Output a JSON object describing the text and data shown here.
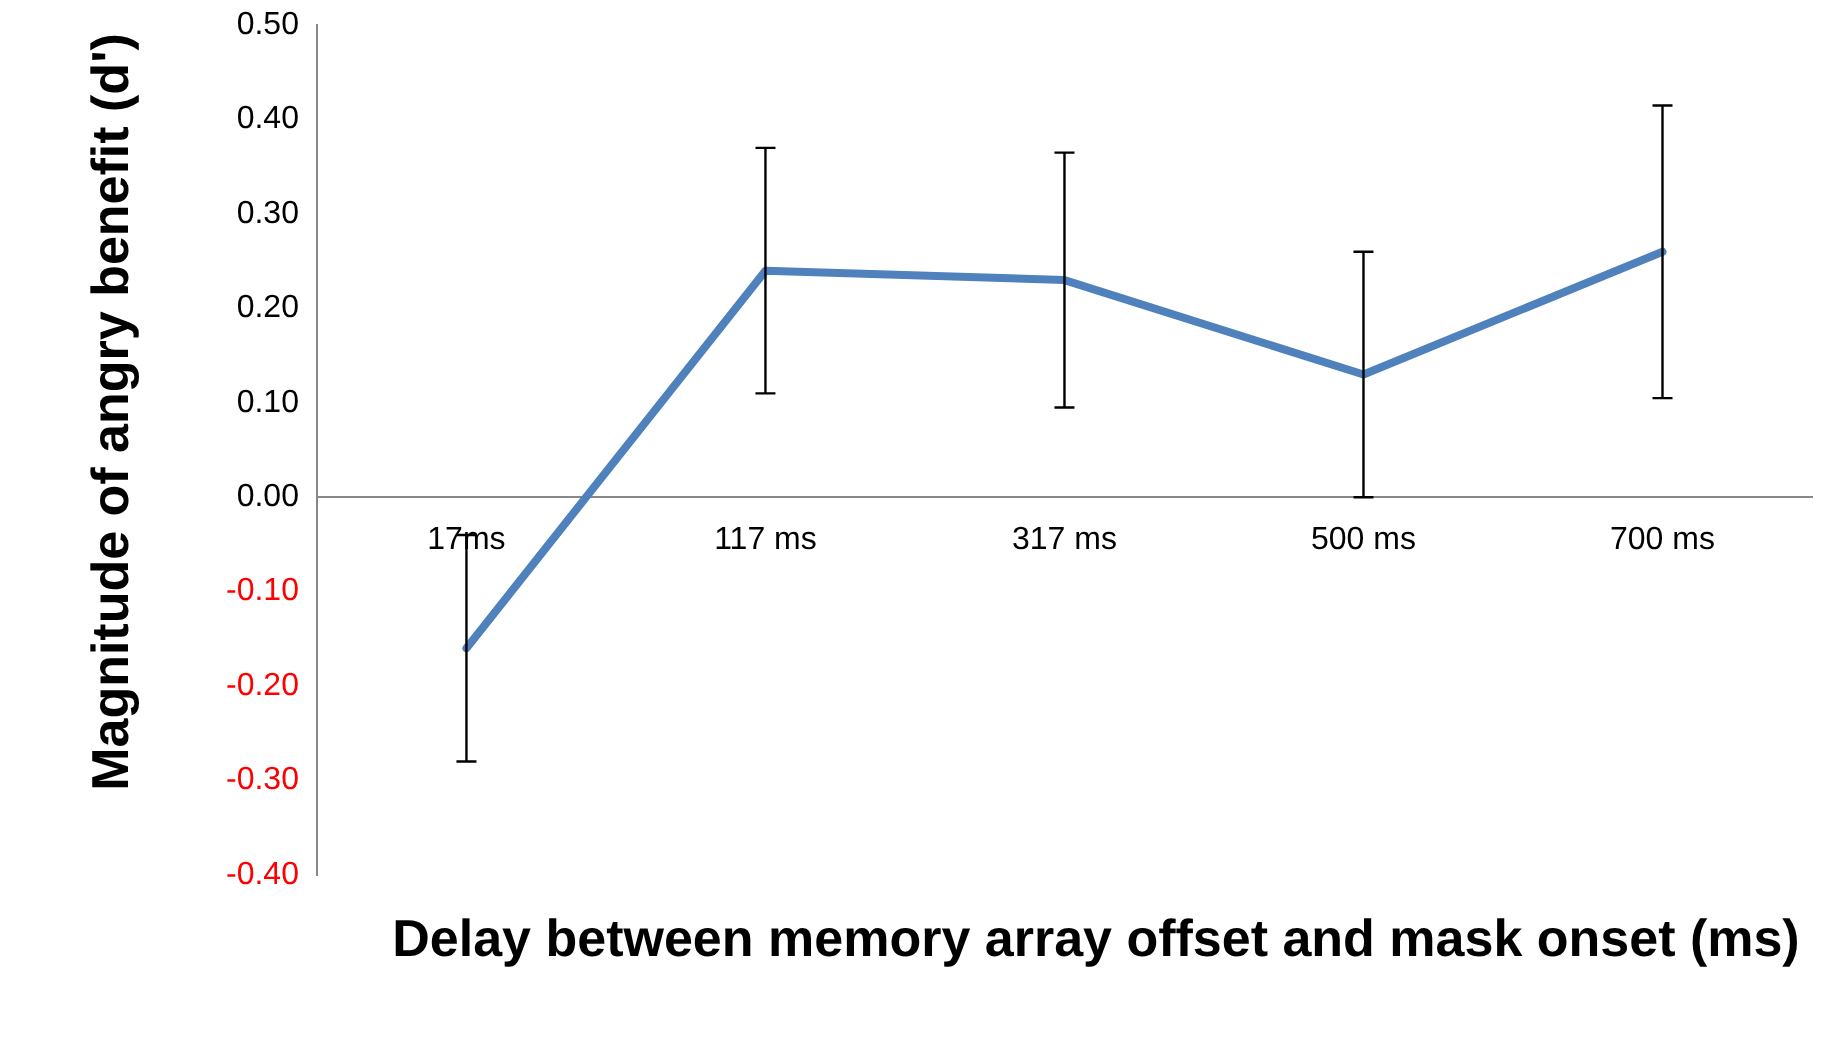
{
  "chart_data": {
    "type": "line",
    "xlabel": "Delay between memory array offset and mask onset (ms)",
    "ylabel": "Magnitude of angry benefit (d')",
    "categories": [
      "17ms",
      "117 ms",
      "317 ms",
      "500 ms",
      "700 ms"
    ],
    "series": [
      {
        "color": "#4f81bd",
        "values": [
          -0.16,
          0.24,
          0.23,
          0.13,
          0.26
        ],
        "errors": [
          0.12,
          0.13,
          0.135,
          0.13,
          0.155
        ]
      }
    ],
    "ylim": [
      -0.4,
      0.5
    ],
    "yticks": [
      {
        "value": -0.4,
        "label": "-0.40"
      },
      {
        "value": -0.3,
        "label": "-0.30"
      },
      {
        "value": -0.2,
        "label": "-0.20"
      },
      {
        "value": -0.1,
        "label": "-0.10"
      },
      {
        "value": 0,
        "label": "0.00"
      },
      {
        "value": 0.1,
        "label": "0.10"
      },
      {
        "value": 0.2,
        "label": "0.20"
      },
      {
        "value": 0.3,
        "label": "0.30"
      },
      {
        "value": 0.4,
        "label": "0.40"
      },
      {
        "value": 0.5,
        "label": "0.50"
      }
    ],
    "grid": false,
    "legend": false,
    "marker": "none",
    "line_style": "solid"
  }
}
